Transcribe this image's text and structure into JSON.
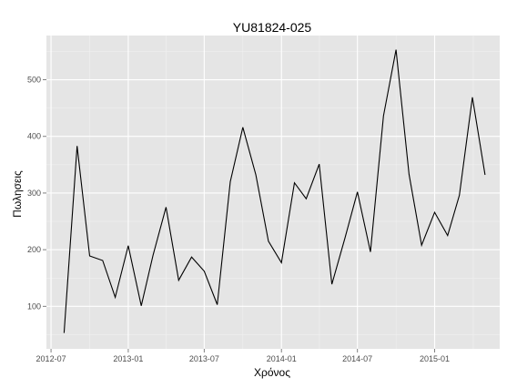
{
  "chart_data": {
    "type": "line",
    "title": "YU81824-025",
    "xlabel": "Χρόνος",
    "ylabel": "Πωλησεις",
    "x_ticks": [
      "2012-07",
      "2013-01",
      "2013-07",
      "2014-01",
      "2014-07",
      "2015-01"
    ],
    "y_ticks": [
      100,
      200,
      300,
      400,
      500
    ],
    "xlim": [
      "2012-06-20",
      "2015-06-05"
    ],
    "ylim": [
      25,
      578
    ],
    "grid": true,
    "background": "#e5e5e5",
    "grid_color": "#ffffff",
    "line_color": "#000000",
    "x": [
      "2012-08-01",
      "2012-09-01",
      "2012-10-01",
      "2012-11-01",
      "2012-12-01",
      "2013-01-01",
      "2013-02-01",
      "2013-03-01",
      "2013-04-01",
      "2013-05-01",
      "2013-06-01",
      "2013-07-01",
      "2013-08-01",
      "2013-09-01",
      "2013-10-01",
      "2013-11-01",
      "2013-12-01",
      "2014-01-01",
      "2014-02-01",
      "2014-03-01",
      "2014-04-01",
      "2014-05-01",
      "2014-06-01",
      "2014-07-01",
      "2014-08-01",
      "2014-09-01",
      "2014-10-01",
      "2014-11-01",
      "2014-12-01",
      "2015-01-01",
      "2015-02-01",
      "2015-03-01",
      "2015-04-01",
      "2015-05-01"
    ],
    "values": [
      53,
      383,
      189,
      181,
      116,
      207,
      101,
      190,
      275,
      146,
      187,
      162,
      103,
      320,
      416,
      332,
      215,
      177,
      318,
      290,
      351,
      139,
      220,
      302,
      196,
      436,
      553,
      333,
      208,
      266,
      225,
      296,
      469,
      332
    ]
  }
}
